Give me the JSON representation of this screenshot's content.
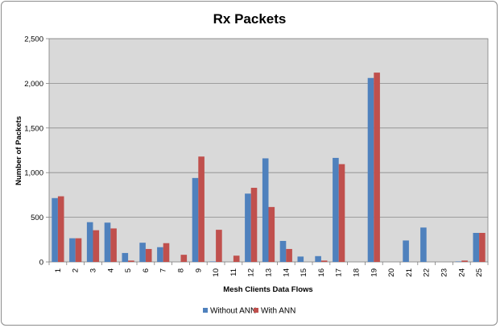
{
  "chart_data": {
    "type": "bar",
    "title": "Rx Packets",
    "xlabel": "Mesh Clients Data Flows",
    "ylabel": "Number of Packets",
    "ylim": [
      0,
      2500
    ],
    "yticks": [
      0,
      500,
      1000,
      1500,
      2000,
      2500
    ],
    "grid": true,
    "legend_position": "bottom",
    "categories": [
      "1",
      "2",
      "3",
      "4",
      "5",
      "6",
      "7",
      "8",
      "9",
      "10",
      "11",
      "12",
      "13",
      "14",
      "15",
      "16",
      "17",
      "18",
      "19",
      "20",
      "21",
      "22",
      "23",
      "24",
      "25"
    ],
    "series": [
      {
        "name": "Without ANN",
        "color": "#4f81bd",
        "values": [
          715,
          265,
          445,
          440,
          100,
          215,
          165,
          0,
          940,
          5,
          0,
          765,
          1160,
          235,
          60,
          65,
          1165,
          0,
          2060,
          0,
          240,
          385,
          0,
          5,
          325
        ]
      },
      {
        "name": "With ANN",
        "color": "#c0504d",
        "values": [
          735,
          265,
          355,
          375,
          15,
          145,
          210,
          80,
          1180,
          360,
          70,
          830,
          615,
          145,
          0,
          15,
          1095,
          0,
          2120,
          0,
          0,
          0,
          0,
          15,
          325
        ]
      }
    ]
  }
}
